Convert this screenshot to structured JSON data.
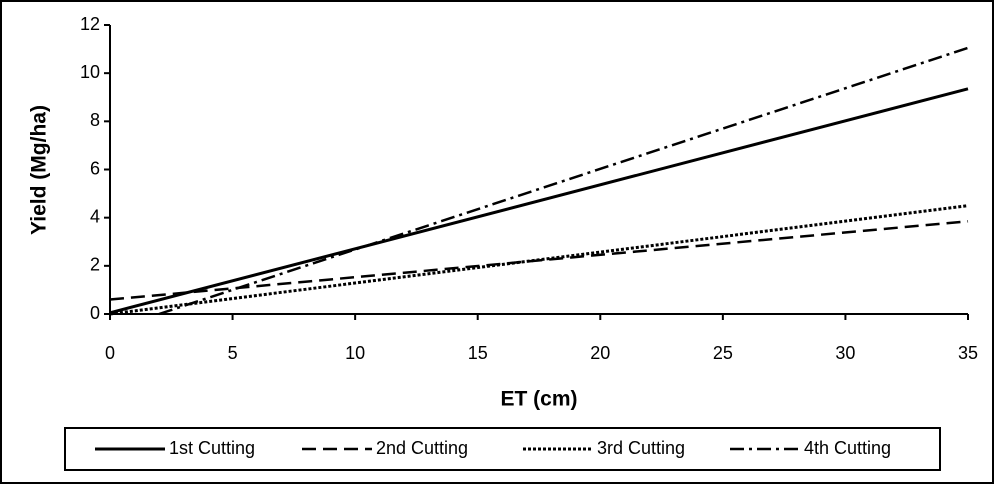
{
  "chart_data": {
    "type": "line",
    "x_label": "ET (cm)",
    "y_label": "Yield (Mg/ha)",
    "xlim": [
      0,
      35
    ],
    "xticks": [
      0,
      5,
      10,
      15,
      20,
      25,
      30,
      35
    ],
    "ylim": [
      0,
      12
    ],
    "yticks": [
      0,
      2,
      4,
      6,
      8,
      10,
      12
    ],
    "grid": false,
    "legend": "bottom",
    "series": [
      {
        "name": "1st Cutting",
        "color": "#000000",
        "dash": "solid",
        "x": [
          0,
          35
        ],
        "values": [
          0.05,
          9.35
        ]
      },
      {
        "name": "2nd Cutting",
        "color": "#000000",
        "dash": "dashed",
        "x": [
          0,
          35
        ],
        "values": [
          0.6,
          3.85
        ]
      },
      {
        "name": "3rd Cutting",
        "color": "#000000",
        "dash": "dotted",
        "x": [
          0,
          35
        ],
        "values": [
          0,
          4.5
        ]
      },
      {
        "name": "4th Cutting",
        "color": "#000000",
        "dash": "dashdot",
        "x": [
          2,
          35
        ],
        "values": [
          0,
          11.05
        ]
      }
    ]
  }
}
